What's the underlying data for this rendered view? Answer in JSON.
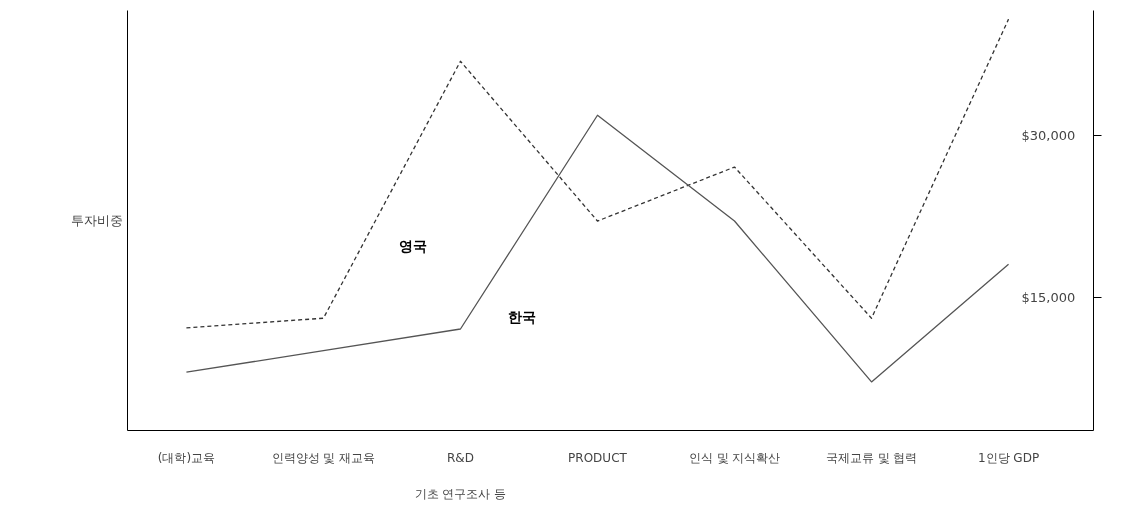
{
  "chart_data": {
    "type": "line",
    "ylabel": "투자비중",
    "categories": [
      "(대학)교육",
      "인력양성 및 재교육",
      "R&D\n기초 연구조사 등",
      "PRODUCT",
      "인식 및 지식확산",
      "국제교류 및 협력",
      "1인당 GDP"
    ],
    "series": [
      {
        "name": "영국",
        "color": "#333333",
        "line_style": "dashed",
        "values": [
          12200,
          13100,
          36900,
          22100,
          27100,
          13100,
          40800
        ]
      },
      {
        "name": "한국",
        "color": "#555555",
        "line_style": "solid",
        "values": [
          8100,
          10100,
          12100,
          31900,
          22100,
          7200,
          18100
        ]
      }
    ],
    "ylim": [
      2700,
      41600
    ],
    "yticks": [
      {
        "value": 15000,
        "label": "$15,000"
      },
      {
        "value": 30000,
        "label": "$30,000"
      }
    ],
    "grid": false,
    "legend": false,
    "marker": "none"
  }
}
